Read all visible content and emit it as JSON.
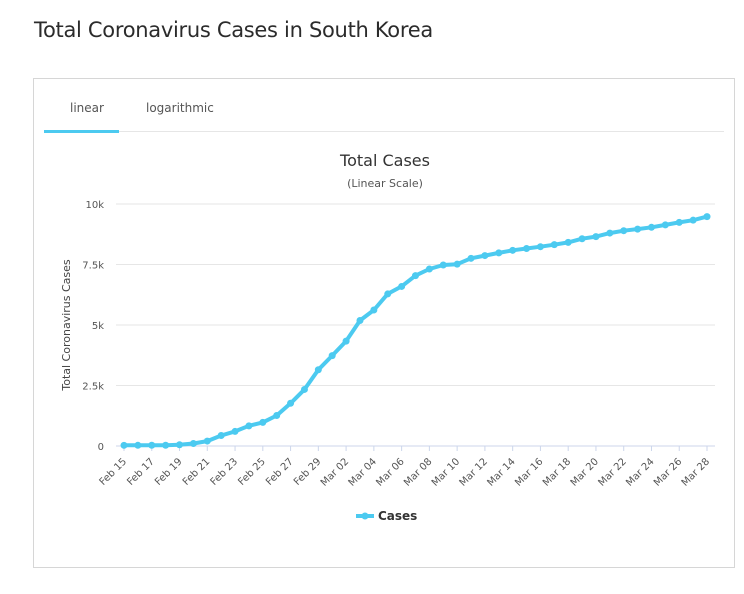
{
  "page": {
    "title": "Total Coronavirus Cases in South Korea"
  },
  "tabs": [
    {
      "label": "linear"
    },
    {
      "label": "logarithmic"
    }
  ],
  "colors": {
    "series": "#4ccaf0",
    "grid": "#e6e6e6",
    "accent": "#4ccaf0"
  },
  "chart_data": {
    "type": "line",
    "title": "Total Cases",
    "subtitle": "(Linear Scale)",
    "xlabel": "",
    "ylabel": "Total Coronavirus Cases",
    "ylim": [
      0,
      10000
    ],
    "yticks": [
      0,
      2500,
      5000,
      7500,
      10000
    ],
    "ytick_labels": [
      "0",
      "2.5k",
      "5k",
      "7.5k",
      "10k"
    ],
    "x": [
      "Feb 15",
      "Feb 16",
      "Feb 17",
      "Feb 18",
      "Feb 19",
      "Feb 20",
      "Feb 21",
      "Feb 22",
      "Feb 23",
      "Feb 24",
      "Feb 25",
      "Feb 26",
      "Feb 27",
      "Feb 28",
      "Feb 29",
      "Mar 01",
      "Mar 02",
      "Mar 03",
      "Mar 04",
      "Mar 05",
      "Mar 06",
      "Mar 07",
      "Mar 08",
      "Mar 09",
      "Mar 10",
      "Mar 11",
      "Mar 12",
      "Mar 13",
      "Mar 14",
      "Mar 15",
      "Mar 16",
      "Mar 17",
      "Mar 18",
      "Mar 19",
      "Mar 20",
      "Mar 21",
      "Mar 22",
      "Mar 23",
      "Mar 24",
      "Mar 25",
      "Mar 26",
      "Mar 27",
      "Mar 28"
    ],
    "xtick_labels": [
      "Feb 15",
      "Feb 17",
      "Feb 19",
      "Feb 21",
      "Feb 23",
      "Feb 25",
      "Feb 27",
      "Feb 29",
      "Mar 02",
      "Mar 04",
      "Mar 06",
      "Mar 08",
      "Mar 10",
      "Mar 12",
      "Mar 14",
      "Mar 16",
      "Mar 18",
      "Mar 20",
      "Mar 22",
      "Mar 24",
      "Mar 26",
      "Mar 28"
    ],
    "series": [
      {
        "name": "Cases",
        "values": [
          28,
          29,
          30,
          31,
          51,
          104,
          204,
          433,
          602,
          833,
          977,
          1261,
          1766,
          2337,
          3150,
          3736,
          4335,
          5186,
          5621,
          6284,
          6593,
          7041,
          7313,
          7478,
          7513,
          7755,
          7869,
          7979,
          8086,
          8162,
          8236,
          8320,
          8413,
          8565,
          8652,
          8799,
          8897,
          8961,
          9037,
          9137,
          9241,
          9332,
          9478
        ]
      }
    ],
    "legend": {
      "position": "bottom-center"
    }
  }
}
